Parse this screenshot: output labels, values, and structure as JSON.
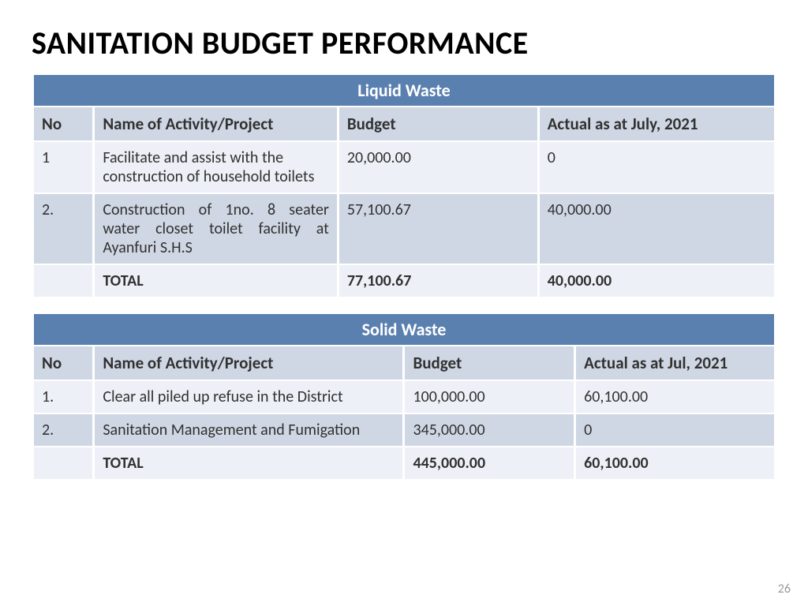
{
  "title": "SANITATION BUDGET PERFORMANCE",
  "page_number": "26",
  "colors": {
    "banner_bg": "#5a80b0",
    "banner_fg": "#ffffff",
    "header_bg": "#d0d7e4",
    "row_light": "#edf0f6",
    "row_dark": "#d0d7e4",
    "text": "#313131",
    "title": "#000000",
    "page_num": "#9b9b9b",
    "page_bg": "#ffffff"
  },
  "tables": [
    {
      "banner": "Liquid Waste",
      "col_widths_pct": [
        8,
        33,
        27,
        32
      ],
      "columns": [
        "No",
        "Name of Activity/Project",
        "Budget",
        "Actual as at July, 2021"
      ],
      "rows": [
        {
          "no": "1",
          "name": "Facilitate and assist with the construction of household toilets",
          "budget": "20,000.00",
          "actual": "0",
          "justify": false
        },
        {
          "no": "2.",
          "name": "Construction of 1no. 8 seater water closet toilet facility at Ayanfuri S.H.S",
          "budget": "57,100.67",
          "actual": "40,000.00",
          "justify": true
        }
      ],
      "total": {
        "label": "TOTAL",
        "budget": "77,100.67",
        "actual": "40,000.00"
      }
    },
    {
      "banner": "Solid Waste",
      "col_widths_pct": [
        8,
        42,
        23,
        27
      ],
      "columns": [
        "No",
        "Name of Activity/Project",
        "Budget",
        "Actual as at Jul, 2021"
      ],
      "rows": [
        {
          "no": "1.",
          "name": "Clear all piled up refuse in the District",
          "budget": "100,000.00",
          "actual": "60,100.00",
          "justify": false
        },
        {
          "no": "2.",
          "name": "Sanitation Management and Fumigation",
          "budget": "345,000.00",
          "actual": "0",
          "justify": false
        }
      ],
      "total": {
        "label": "TOTAL",
        "budget": "445,000.00",
        "actual": "60,100.00"
      }
    }
  ]
}
